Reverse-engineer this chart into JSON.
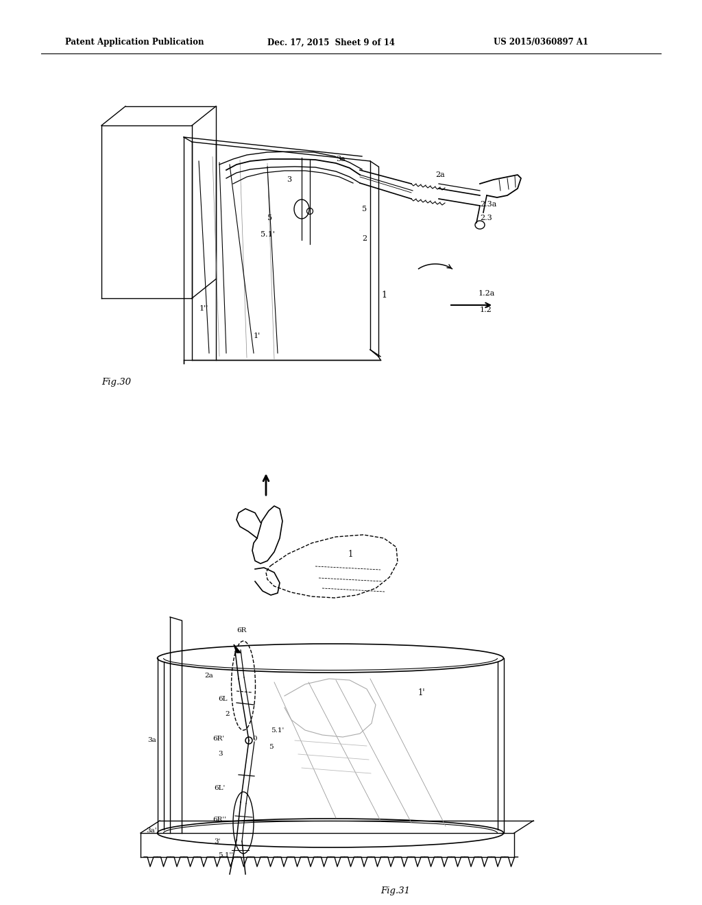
{
  "background_color": "#ffffff",
  "header_left": "Patent Application Publication",
  "header_center": "Dec. 17, 2015  Sheet 9 of 14",
  "header_right": "US 2015/0360897 A1",
  "fig30_label": "Fig.30",
  "fig31_label": "Fig.31",
  "page_width": 10.24,
  "page_height": 13.2,
  "dpi": 100
}
